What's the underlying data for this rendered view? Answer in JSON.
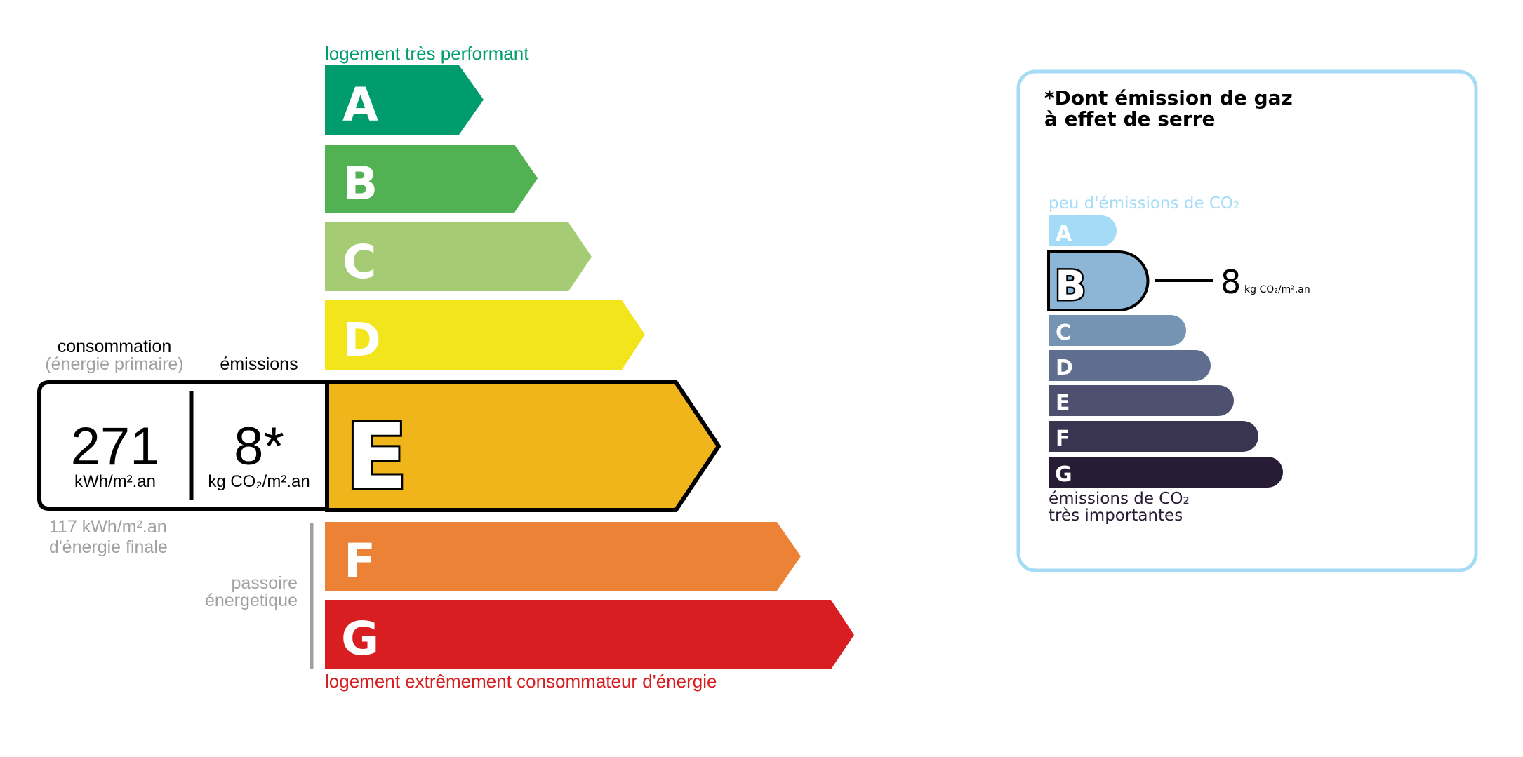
{
  "energy": {
    "top_label": "logement très performant",
    "bottom_label": "logement extrêmement consommateur d'énergie",
    "classes": [
      {
        "letter": "A",
        "color": "#009c6d"
      },
      {
        "letter": "B",
        "color": "#52b153"
      },
      {
        "letter": "C",
        "color": "#a5cc74"
      },
      {
        "letter": "D",
        "color": "#f2e51c"
      },
      {
        "letter": "E",
        "color": "#f0b51a"
      },
      {
        "letter": "F",
        "color": "#ec8235"
      },
      {
        "letter": "G",
        "color": "#d81e20"
      }
    ],
    "current_class": "E",
    "consumption_label": "consommation",
    "consumption_sublabel": "(énergie primaire)",
    "emissions_label": "émissions",
    "consumption_value": "271",
    "consumption_unit": "kWh/m².an",
    "emissions_value": "8*",
    "emissions_unit": "kg CO₂/m².an",
    "final_energy_line1": "117 kWh/m².an",
    "final_energy_line2": "d'énergie finale",
    "passoire_line1": "passoire",
    "passoire_line2": "énergetique",
    "top_color": "#009c6d",
    "bottom_color": "#d81e20",
    "muted_color": "#a0a0a0"
  },
  "ges": {
    "title_line1": "*Dont émission de gaz",
    "title_line2": "à effet de serre",
    "top_label": "peu d'émissions de CO₂",
    "bottom_label_line1": "émissions de CO₂",
    "bottom_label_line2": "très importantes",
    "classes": [
      {
        "letter": "A",
        "color": "#a4dbf6"
      },
      {
        "letter": "B",
        "color": "#8db5d5"
      },
      {
        "letter": "C",
        "color": "#7593b3"
      },
      {
        "letter": "D",
        "color": "#5f6e8e"
      },
      {
        "letter": "E",
        "color": "#4e5070"
      },
      {
        "letter": "F",
        "color": "#393551"
      },
      {
        "letter": "G",
        "color": "#281b35"
      }
    ],
    "current_class": "B",
    "value": "8",
    "unit": "kg CO₂/m².an",
    "border_color": "#a5dbf5"
  }
}
